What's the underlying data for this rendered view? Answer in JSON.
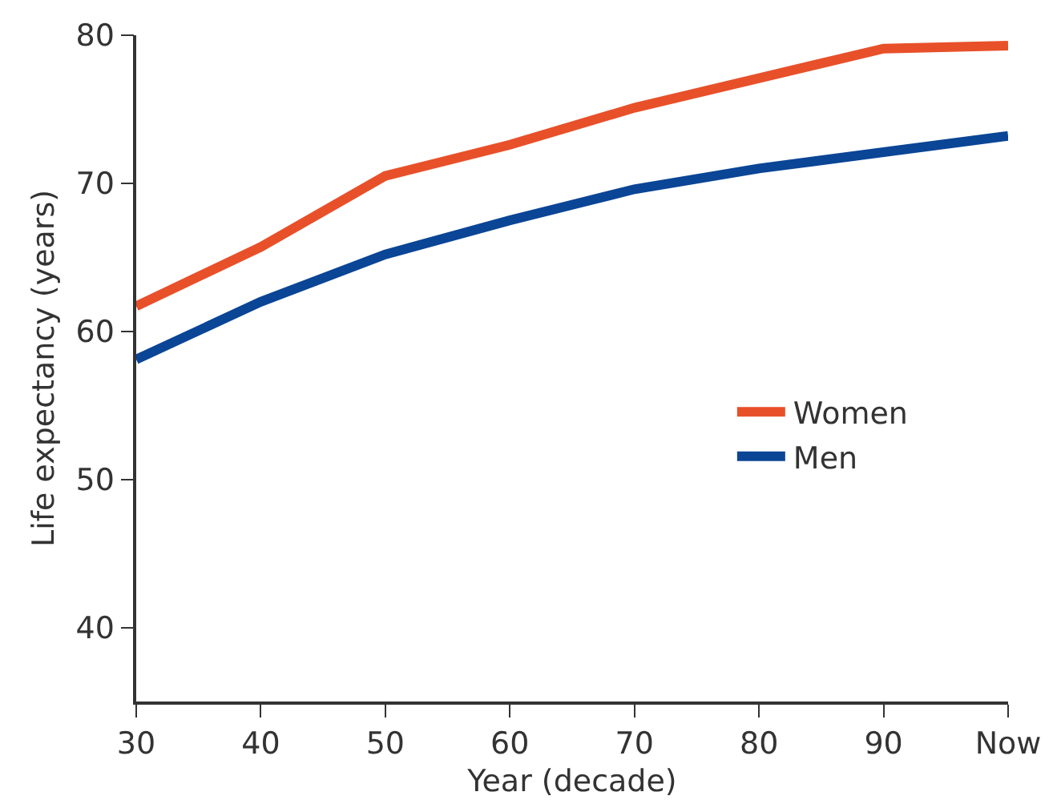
{
  "chart_data": {
    "type": "line",
    "xlabel": "Year (decade)",
    "ylabel": "Life expectancy (years)",
    "categories": [
      "30",
      "40",
      "50",
      "60",
      "70",
      "80",
      "90",
      "Now"
    ],
    "series": [
      {
        "name": "Women",
        "color": "#e8502a",
        "values": [
          61.7,
          65.7,
          70.5,
          72.6,
          75.1,
          77.1,
          79.1,
          79.3
        ]
      },
      {
        "name": "Men",
        "color": "#0a4596",
        "values": [
          58.1,
          62.0,
          65.2,
          67.5,
          69.6,
          71.0,
          72.1,
          73.2
        ]
      }
    ],
    "ylim": [
      35,
      80
    ],
    "yticks": [
      40,
      50,
      60,
      70,
      80
    ],
    "grid": false,
    "legend": "right",
    "marker": "none",
    "line_style": "solid"
  }
}
